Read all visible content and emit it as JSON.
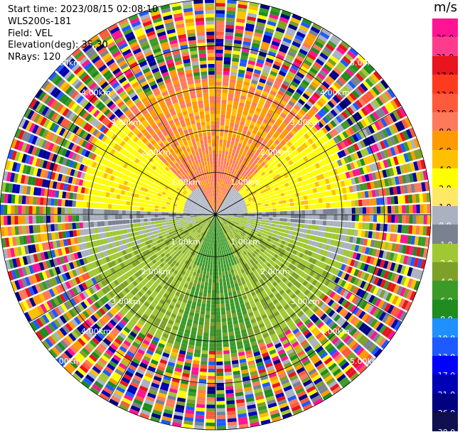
{
  "header": {
    "start_time": "Start time: 2023/08/15 02:08:10",
    "site": "WLS200s-181",
    "field": "Field: VEL",
    "elevation": "Elevation(deg): 35.30",
    "nrays": "NRays: 120"
  },
  "colorbar": {
    "unit": "m/s",
    "ticks": [
      "26.0",
      "21.0",
      "17.0",
      "13.0",
      "10.0",
      "8.0",
      "6.0",
      "4.0",
      "2.0",
      "1.0",
      "0.0",
      "-1.0",
      "-2.0",
      "-4.0",
      "-6.0",
      "-8.0",
      "-10.0",
      "-13.0",
      "-17.0",
      "-21.0",
      "-26.0",
      "-30.0"
    ],
    "colors": [
      "#ff1493",
      "#ff3c8c",
      "#e8141e",
      "#ff3b1f",
      "#ff5a3c",
      "#ff7a5a",
      "#ff9a00",
      "#ffc000",
      "#ffff00",
      "#ffe866",
      "#aab2c0",
      "#7a8290",
      "#a0c832",
      "#7da028",
      "#3c9a28",
      "#1e8c1e",
      "#1e90ff",
      "#1e5aff",
      "#0000ff",
      "#0000b4",
      "#000080",
      "#101050"
    ]
  },
  "range_labels": [
    "1.00km",
    "2.00km",
    "3.00km",
    "4.00km",
    "5.00km"
  ]
}
